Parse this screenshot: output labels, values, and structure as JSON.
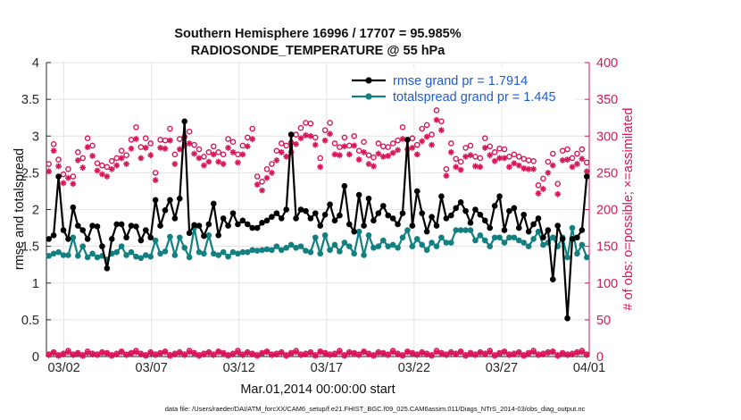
{
  "chart_data": {
    "type": "line",
    "title": "Southern Hemisphere 16996 / 17707 = 95.985%",
    "subtitle": "RADIOSONDE_TEMPERATURE @ 55 hPa",
    "xlabel": "Mar.01,2014 00:00:00 start",
    "ylabel_left": "rmse and totalspread",
    "ylabel_right": "# of obs: o=possible; ×=assimilated",
    "x_start": "2014-03-01T00:00",
    "x_end": "2014-04-01T00:00",
    "x_ticks": [
      "03/02",
      "03/07",
      "03/12",
      "03/17",
      "03/22",
      "03/27",
      "04/01"
    ],
    "ylim_left": [
      0,
      4
    ],
    "yticks_left": [
      "0",
      "0.5",
      "1",
      "1.5",
      "2",
      "2.5",
      "3",
      "3.5",
      "4"
    ],
    "ylim_right": [
      0,
      400
    ],
    "yticks_right": [
      "0",
      "50",
      "100",
      "150",
      "200",
      "250",
      "300",
      "350",
      "400"
    ],
    "grid": true,
    "legend_position": "top-right",
    "colors": {
      "rmse": "#000000",
      "totalspread": "#128080",
      "obs": "#d9165b",
      "legend_text": "#1f5bd6",
      "right_axis": "#d9165b"
    },
    "series": [
      {
        "name": "rmse grand pr = 1.7914",
        "axis": "left",
        "values": [
          1.6,
          1.65,
          2.45,
          1.72,
          1.6,
          2.03,
          1.78,
          1.72,
          1.6,
          1.78,
          1.77,
          1.5,
          1.2,
          1.6,
          1.8,
          1.8,
          1.62,
          1.78,
          1.77,
          1.58,
          1.72,
          1.62,
          2.13,
          1.78,
          1.99,
          2.13,
          1.88,
          2.15,
          3.2,
          1.68,
          1.79,
          1.78,
          1.64,
          1.8,
          2.08,
          1.65,
          1.88,
          1.78,
          1.95,
          1.8,
          1.85,
          1.8,
          1.75,
          1.75,
          1.82,
          1.85,
          1.9,
          1.95,
          1.88,
          2.0,
          3.02,
          1.88,
          2.0,
          1.98,
          1.88,
          1.95,
          1.78,
          1.93,
          2.07,
          1.85,
          1.92,
          2.32,
          1.8,
          1.7,
          2.2,
          1.78,
          2.15,
          1.85,
          1.95,
          2.05,
          1.92,
          1.88,
          1.8,
          1.95,
          2.95,
          1.78,
          2.25,
          1.95,
          1.7,
          1.9,
          1.78,
          2.18,
          1.88,
          1.92,
          2.02,
          2.1,
          1.98,
          1.82,
          2.0,
          1.93,
          1.85,
          1.75,
          2.05,
          2.18,
          1.72,
          1.98,
          2.02,
          1.75,
          1.93,
          1.7,
          1.8,
          1.88,
          1.62,
          1.72,
          1.05,
          1.78,
          1.6,
          0.52,
          1.6,
          1.62,
          1.72,
          2.45
        ]
      },
      {
        "name": "totalspread grand pr = 1.445",
        "axis": "left",
        "values": [
          1.37,
          1.4,
          1.42,
          1.38,
          1.38,
          1.62,
          1.37,
          1.5,
          1.35,
          1.4,
          1.35,
          1.37,
          1.32,
          1.4,
          1.42,
          1.5,
          1.38,
          1.42,
          1.36,
          1.34,
          1.38,
          1.36,
          1.58,
          1.4,
          1.43,
          1.63,
          1.38,
          1.62,
          1.48,
          1.35,
          1.75,
          1.42,
          1.4,
          1.65,
          1.4,
          1.38,
          1.42,
          1.36,
          1.42,
          1.4,
          1.42,
          1.42,
          1.45,
          1.44,
          1.45,
          1.46,
          1.45,
          1.5,
          1.45,
          1.48,
          1.52,
          1.48,
          1.5,
          1.44,
          1.42,
          1.62,
          1.4,
          1.65,
          1.45,
          1.52,
          1.43,
          1.55,
          1.5,
          1.4,
          1.7,
          1.38,
          1.65,
          1.48,
          1.5,
          1.58,
          1.5,
          1.52,
          1.48,
          1.62,
          1.72,
          1.5,
          1.6,
          1.52,
          1.45,
          1.55,
          1.5,
          1.62,
          1.55,
          1.55,
          1.72,
          1.72,
          1.72,
          1.72,
          1.58,
          1.65,
          1.58,
          1.5,
          1.62,
          1.62,
          1.55,
          1.62,
          1.62,
          1.58,
          1.55,
          1.5,
          1.6,
          1.7,
          1.52,
          1.55,
          1.62,
          1.5,
          1.62,
          1.35,
          1.75,
          1.4,
          1.52,
          1.35
        ]
      },
      {
        "name": "possible",
        "axis": "right",
        "marker": "o",
        "values": [
          262,
          289,
          268,
          248,
          255,
          245,
          278,
          270,
          297,
          287,
          263,
          260,
          258,
          266,
          270,
          280,
          274,
          295,
          312,
          285,
          297,
          290,
          250,
          295,
          294,
          310,
          275,
          296,
          299,
          306,
          288,
          282,
          272,
          278,
          286,
          278,
          275,
          296,
          292,
          275,
          287,
          298,
          310,
          245,
          238,
          255,
          262,
          280,
          290,
          287,
          291,
          302,
          311,
          318,
          317,
          298,
          270,
          308,
          318,
          290,
          285,
          298,
          287,
          300,
          280,
          292,
          274,
          271,
          290,
          286,
          285,
          290,
          294,
          312,
          295,
          297,
          288,
          310,
          315,
          302,
          335,
          320,
          255,
          290,
          269,
          265,
          284,
          287,
          272,
          270,
          297,
          286,
          278,
          283,
          282,
          272,
          275,
          272,
          269,
          267,
          266,
          233,
          242,
          265,
          276,
          235,
          280,
          282,
          270,
          276,
          282,
          264
        ]
      },
      {
        "name": "assimilated",
        "axis": "right",
        "marker": "x",
        "values": [
          252,
          280,
          259,
          236,
          243,
          235,
          267,
          257,
          285,
          273,
          253,
          248,
          245,
          255,
          260,
          270,
          262,
          283,
          296,
          270,
          284,
          274,
          240,
          284,
          283,
          294,
          262,
          282,
          287,
          290,
          276,
          270,
          260,
          265,
          275,
          265,
          262,
          284,
          278,
          264,
          275,
          286,
          296,
          234,
          226,
          243,
          250,
          267,
          278,
          272,
          278,
          289,
          297,
          301,
          300,
          288,
          258,
          294,
          303,
          275,
          274,
          286,
          275,
          287,
          268,
          278,
          262,
          259,
          276,
          272,
          273,
          277,
          281,
          296,
          282,
          284,
          275,
          293,
          299,
          288,
          322,
          308,
          246,
          278,
          258,
          254,
          272,
          274,
          259,
          258,
          284,
          274,
          266,
          270,
          270,
          258,
          263,
          260,
          256,
          255,
          255,
          222,
          228,
          250,
          260,
          221,
          267,
          268,
          258,
          262,
          269,
          252
        ]
      },
      {
        "name": "near-zero possible",
        "axis": "right",
        "marker": "o",
        "values": [
          3,
          6,
          2,
          4,
          8,
          3,
          5,
          2,
          7,
          4,
          3,
          6,
          5,
          2,
          4,
          7,
          3,
          5,
          8,
          4,
          2,
          6,
          3,
          5,
          7,
          2,
          4,
          6,
          3,
          8,
          5,
          2,
          4,
          6,
          3,
          7,
          5,
          2,
          4,
          8,
          3,
          6,
          4,
          2,
          5,
          7,
          3,
          4,
          6,
          2,
          5,
          8,
          3,
          4,
          6,
          2,
          7,
          5,
          3,
          4,
          8,
          2,
          6,
          5,
          3,
          7,
          4,
          2,
          6,
          5,
          3,
          8,
          4,
          2,
          7,
          5,
          3,
          6,
          4,
          2,
          8,
          5,
          3,
          6,
          4,
          7,
          2,
          5,
          3,
          6,
          4,
          8,
          2,
          5,
          7,
          3,
          4,
          6,
          2,
          5,
          8,
          3,
          4,
          6,
          7,
          2,
          5,
          3,
          4,
          6,
          8,
          3
        ]
      },
      {
        "name": "near-zero assimilated",
        "axis": "right",
        "marker": "x",
        "values": [
          2,
          5,
          1,
          3,
          6,
          2,
          4,
          1,
          5,
          3,
          2,
          5,
          4,
          1,
          3,
          6,
          2,
          4,
          6,
          3,
          1,
          5,
          2,
          4,
          6,
          1,
          3,
          5,
          2,
          6,
          4,
          1,
          3,
          5,
          2,
          6,
          4,
          1,
          3,
          6,
          2,
          5,
          3,
          1,
          4,
          6,
          2,
          3,
          5,
          1,
          4,
          6,
          2,
          3,
          5,
          1,
          6,
          4,
          2,
          3,
          6,
          1,
          5,
          4,
          2,
          6,
          3,
          1,
          5,
          4,
          2,
          6,
          3,
          1,
          6,
          4,
          2,
          5,
          3,
          1,
          6,
          4,
          2,
          5,
          3,
          6,
          1,
          4,
          2,
          5,
          3,
          6,
          1,
          4,
          6,
          2,
          3,
          5,
          1,
          4,
          6,
          2,
          3,
          5,
          6,
          1,
          4,
          2,
          3,
          5,
          6,
          2
        ]
      }
    ],
    "legend": [
      "rmse grand pr = 1.7914",
      "totalspread grand pr = 1.445"
    ],
    "footnote": "data file: /Users/raeder/DAI/ATM_forcXX/CAM6_setup/f.e21.FHIST_BGC.f09_025.CAM6assim.011/Diags_NTrS_2014-03/obs_diag_output.nc"
  }
}
